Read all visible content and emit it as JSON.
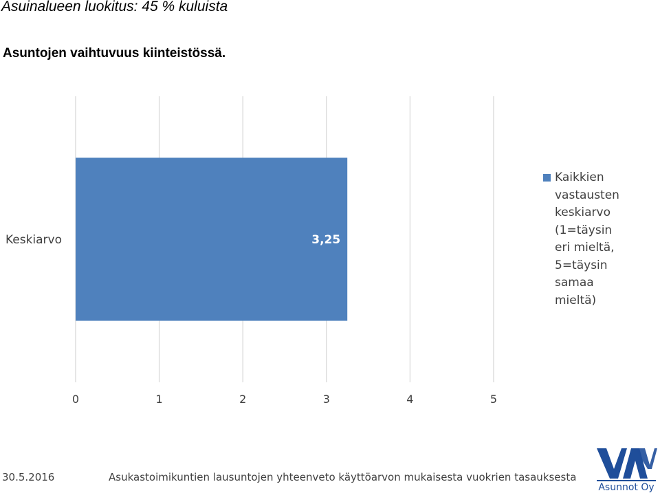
{
  "header": {
    "title": "Asuinalueen luokitus: 45 % kuluista",
    "subtitle": "Asuntojen vaihtuvuus kiinteistössä."
  },
  "chart_data": {
    "type": "bar",
    "orientation": "horizontal",
    "categories": [
      "Keskiarvo"
    ],
    "series": [
      {
        "name": "Kaikkien vastausten keskiarvo (1=täysin eri mieltä, 5=täysin samaa mieltä)",
        "values": [
          3.25
        ],
        "labels": [
          "3,25"
        ],
        "color": "#4f81bd"
      }
    ],
    "xlim": [
      0,
      5
    ],
    "xticks": [
      "0",
      "1",
      "2",
      "3",
      "4",
      "5"
    ],
    "grid": true,
    "legend_position": "right"
  },
  "footer": {
    "date": "30.5.2016",
    "text": "Asukastoimikuntien lausuntojen yhteenveto käyttöarvon mukaisesta vuokrien tasauksesta"
  },
  "logo": {
    "mark": "VAV",
    "text": "Asunnot Oy",
    "color": "#1f4e9a"
  }
}
